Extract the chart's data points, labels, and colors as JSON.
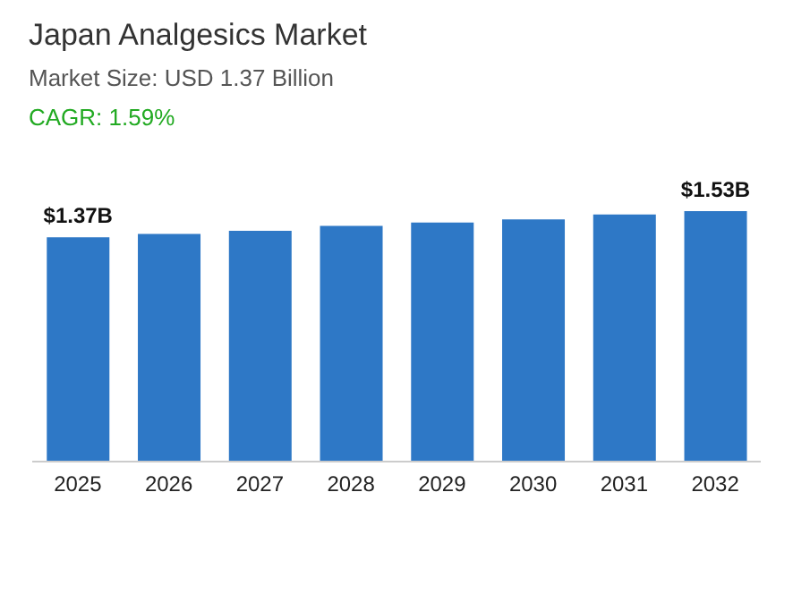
{
  "chart_data": {
    "type": "bar",
    "title": "Japan Analgesics Market",
    "subtitle": "Market Size: USD 1.37 Billion",
    "annotations": [
      "CAGR: 1.59%"
    ],
    "categories": [
      "2025",
      "2026",
      "2027",
      "2028",
      "2029",
      "2030",
      "2031",
      "2032"
    ],
    "values": [
      1.37,
      1.39,
      1.41,
      1.44,
      1.46,
      1.48,
      1.51,
      1.53
    ],
    "value_labels": [
      "$1.37B",
      null,
      null,
      null,
      null,
      null,
      null,
      "$1.53B"
    ],
    "color": "#2e78c6",
    "grid": false,
    "legend": false
  }
}
